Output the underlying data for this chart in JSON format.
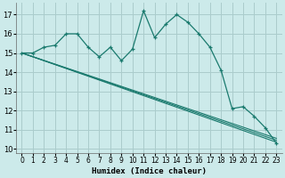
{
  "xlabel": "Humidex (Indice chaleur)",
  "bg_color": "#cceaea",
  "grid_color": "#aacccc",
  "line_color": "#1a7a6e",
  "xlim": [
    -0.5,
    23.5
  ],
  "ylim": [
    9.8,
    17.6
  ],
  "yticks": [
    10,
    11,
    12,
    13,
    14,
    15,
    16,
    17
  ],
  "xticks": [
    0,
    1,
    2,
    3,
    4,
    5,
    6,
    7,
    8,
    9,
    10,
    11,
    12,
    13,
    14,
    15,
    16,
    17,
    18,
    19,
    20,
    21,
    22,
    23
  ],
  "line1_x": [
    0,
    1,
    2,
    3,
    4,
    5,
    6,
    7,
    8,
    9,
    10,
    11,
    12,
    13,
    14,
    15,
    16,
    17,
    18,
    19,
    20,
    21,
    22,
    23
  ],
  "line1_y": [
    15.0,
    15.0,
    15.3,
    15.4,
    16.0,
    16.0,
    15.3,
    14.8,
    15.3,
    14.6,
    15.2,
    17.2,
    15.8,
    16.5,
    17.0,
    16.6,
    16.0,
    15.3,
    14.1,
    12.1,
    12.2,
    11.7,
    11.1,
    10.3
  ],
  "straight_lines": [
    {
      "x0": 0,
      "y0": 15.0,
      "x1": 23,
      "y1": 10.35
    },
    {
      "x0": 0,
      "y0": 15.0,
      "x1": 23,
      "y1": 10.45
    },
    {
      "x0": 0,
      "y0": 15.0,
      "x1": 23,
      "y1": 10.55
    }
  ]
}
